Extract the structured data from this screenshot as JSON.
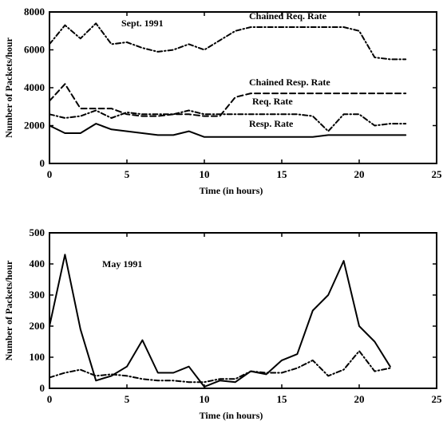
{
  "chart_data": [
    {
      "type": "line",
      "annotation": "Sept. 1991",
      "xlabel": "Time (in hours)",
      "ylabel": "Number of Packets/hour",
      "xlim": [
        0,
        25
      ],
      "ylim": [
        0,
        8000
      ],
      "xticks": [
        "0",
        "5",
        "10",
        "15",
        "20",
        "25"
      ],
      "yticks": [
        "0",
        "2000",
        "4000",
        "6000",
        "8000"
      ],
      "grid": false,
      "series": [
        {
          "name": "Chained Req. Rate",
          "style": "dashdot",
          "x": [
            0,
            1,
            2,
            3,
            4,
            5,
            6,
            7,
            8,
            9,
            10,
            11,
            12,
            13,
            14,
            15,
            16,
            17,
            18,
            19,
            20,
            21,
            22,
            23
          ],
          "y": [
            6300,
            7300,
            6600,
            7400,
            6300,
            6400,
            6100,
            5900,
            6000,
            6300,
            6000,
            6500,
            7000,
            7200,
            7200,
            7200,
            7200,
            7200,
            7200,
            7200,
            7000,
            5600,
            5500,
            5500
          ]
        },
        {
          "name": "Chained Resp. Rate",
          "style": "dash",
          "x": [
            0,
            1,
            2,
            3,
            4,
            5,
            6,
            7,
            8,
            9,
            10,
            11,
            12,
            13,
            14,
            15,
            16,
            17,
            18,
            19,
            20,
            21,
            22,
            23
          ],
          "y": [
            3300,
            4200,
            2900,
            2900,
            2900,
            2600,
            2500,
            2500,
            2600,
            2600,
            2500,
            2500,
            3500,
            3700,
            3700,
            3700,
            3700,
            3700,
            3700,
            3700,
            3700,
            3700,
            3700,
            3700
          ]
        },
        {
          "name": "Req. Rate",
          "style": "dashdot",
          "x": [
            0,
            1,
            2,
            3,
            4,
            5,
            6,
            7,
            8,
            9,
            10,
            11,
            12,
            13,
            14,
            15,
            16,
            17,
            18,
            19,
            20,
            21,
            22,
            23
          ],
          "y": [
            2600,
            2400,
            2500,
            2800,
            2400,
            2700,
            2600,
            2600,
            2600,
            2800,
            2600,
            2600,
            2600,
            2600,
            2600,
            2600,
            2600,
            2500,
            1700,
            2600,
            2600,
            2000,
            2100,
            2100
          ]
        },
        {
          "name": "Resp. Rate",
          "style": "solid",
          "x": [
            0,
            1,
            2,
            3,
            4,
            5,
            6,
            7,
            8,
            9,
            10,
            11,
            12,
            13,
            14,
            15,
            16,
            17,
            18,
            19,
            20,
            21,
            22,
            23
          ],
          "y": [
            2000,
            1600,
            1600,
            2100,
            1800,
            1700,
            1600,
            1500,
            1500,
            1700,
            1400,
            1400,
            1400,
            1400,
            1400,
            1400,
            1400,
            1400,
            1500,
            1500,
            1500,
            1500,
            1500,
            1500
          ]
        }
      ]
    },
    {
      "type": "line",
      "annotation": "May 1991",
      "xlabel": "Time (in hours)",
      "ylabel": "Number of Packets/hour",
      "xlim": [
        0,
        25
      ],
      "ylim": [
        0,
        500
      ],
      "xticks": [
        "0",
        "5",
        "10",
        "15",
        "20",
        "25"
      ],
      "yticks": [
        "0",
        "100",
        "200",
        "300",
        "400",
        "500"
      ],
      "grid": false,
      "series": [
        {
          "style": "solid",
          "x": [
            0,
            1,
            2,
            3,
            4,
            5,
            6,
            7,
            8,
            9,
            10,
            11,
            12,
            13,
            14,
            15,
            16,
            17,
            18,
            19,
            20,
            21,
            22
          ],
          "y": [
            200,
            430,
            190,
            25,
            40,
            70,
            155,
            50,
            50,
            70,
            5,
            25,
            20,
            55,
            45,
            90,
            110,
            250,
            300,
            410,
            200,
            150,
            70
          ]
        },
        {
          "style": "dashdot",
          "x": [
            0,
            1,
            2,
            3,
            4,
            5,
            6,
            7,
            8,
            9,
            10,
            11,
            12,
            13,
            14,
            15,
            16,
            17,
            18,
            19,
            20,
            21,
            22
          ],
          "y": [
            35,
            50,
            60,
            40,
            45,
            40,
            30,
            25,
            25,
            20,
            20,
            30,
            30,
            55,
            50,
            50,
            65,
            90,
            40,
            60,
            120,
            55,
            65
          ]
        }
      ]
    }
  ]
}
